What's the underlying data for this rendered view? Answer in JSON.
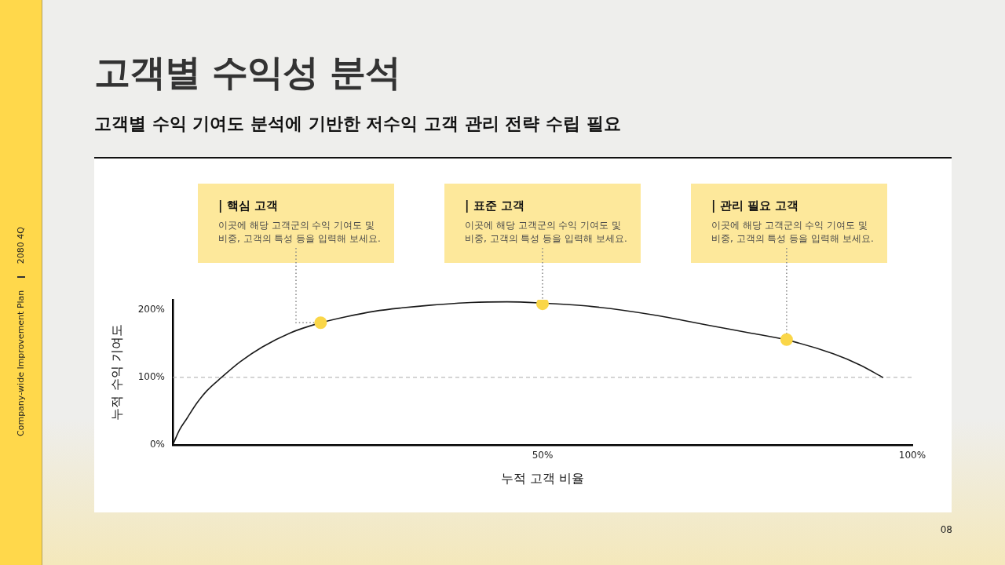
{
  "chart_data": {
    "type": "line",
    "title": "고객별 수익성 분석",
    "subtitle": "고객별 수익 기여도 분석에 기반한 저수익 고객 관리 전략 수립 필요",
    "xlabel": "누적 고객 비율",
    "ylabel": "누적 수익 기여도",
    "xlim": [
      0,
      100
    ],
    "xticks": [
      {
        "value": 50,
        "label": "50%"
      },
      {
        "value": 100,
        "label": "100%"
      }
    ],
    "ylim": [
      0,
      215
    ],
    "yticks": [
      {
        "value": 0,
        "label": "0%"
      },
      {
        "value": 100,
        "label": "100%"
      },
      {
        "value": 200,
        "label": "200%"
      }
    ],
    "grid": false,
    "legend": false,
    "marker": "none",
    "line_style": "solid",
    "series": [
      {
        "color": "#1a1a1a",
        "x": [
          0,
          0.4,
          0.9,
          1.9,
          3.2,
          4.6,
          6.6,
          9.1,
          12.1,
          15.9,
          19.7,
          23.5,
          27.3,
          31,
          34.9,
          40.3,
          45.2,
          50,
          56.7,
          64.8,
          73,
          78,
          83.2,
          89.3,
          93,
          96
        ],
        "values": [
          0,
          10,
          22,
          39,
          61,
          80,
          100,
          123,
          145,
          166,
          180,
          190,
          198,
          203,
          207,
          211,
          212,
          210,
          205,
          193,
          176,
          166,
          155,
          135,
          118,
          100
        ]
      },
      {
        "type": "scatter",
        "color": "#fad648",
        "marker": "circle",
        "x": [
          20,
          50,
          83
        ],
        "values": [
          181,
          209,
          156
        ]
      }
    ],
    "ref_lines": [
      {
        "axis": "y",
        "value": 100,
        "color": "#aaaaaa",
        "line_style": "dashed"
      }
    ],
    "annotations": [
      {
        "text": "| 핵심 고객\n이곳에 해당 고객군의 수익 기여도 및\n비중, 고객의 특성 등을 입력해 보세요.",
        "x": 20,
        "y": 181
      },
      {
        "text": "| 표준 고객\n이곳에 해당 고객군의 수익 기여도 및\n비중, 고객의 특성 등을 입력해 보세요.",
        "x": 50,
        "y": 209
      },
      {
        "text": "| 관리 필요 고객\n이곳에 해당 고객군의 수익 기여도 및\n비중, 고객의 특성 등을 입력해 보세요.",
        "x": 83,
        "y": 156
      },
      "Company-wide Improvement Plan",
      "2080 4Q",
      "08"
    ]
  }
}
